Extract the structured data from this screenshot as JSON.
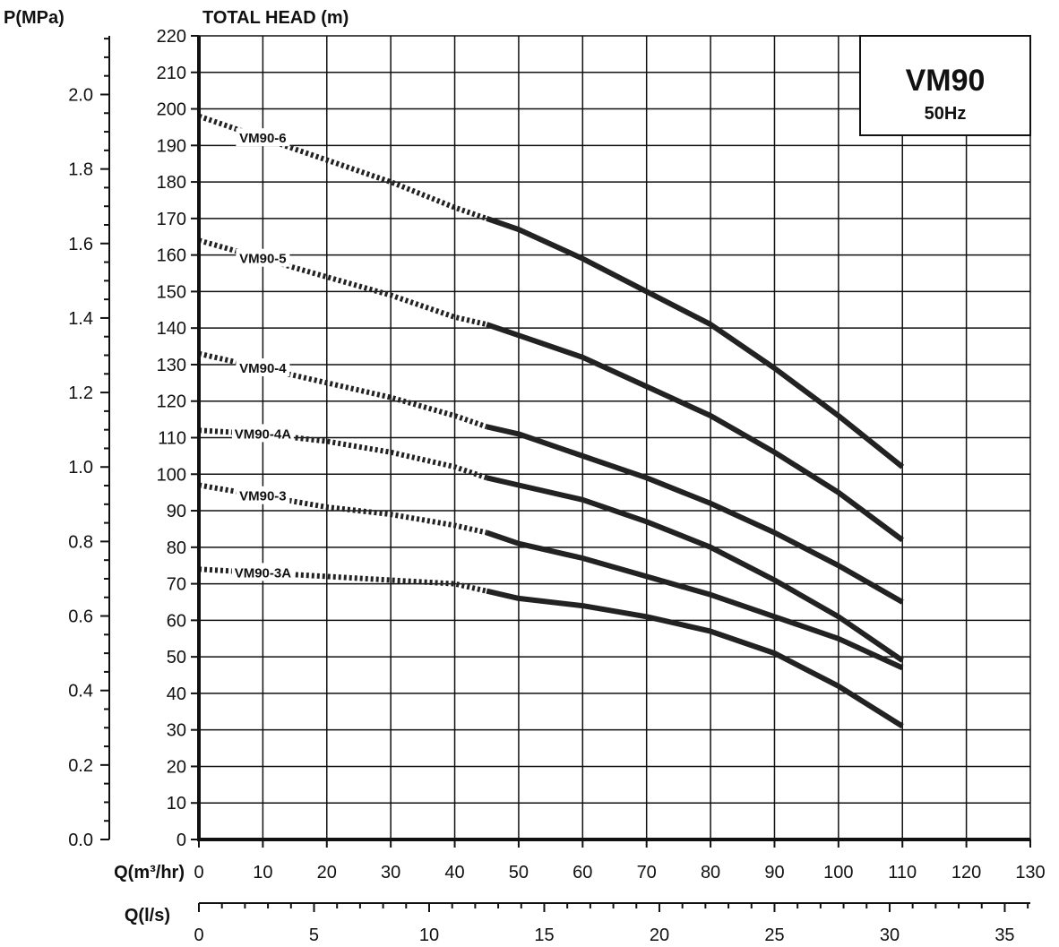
{
  "chart_data": {
    "type": "line",
    "title": "VM90",
    "subtitle": "50Hz",
    "ylabel": "TOTAL HEAD (m)",
    "ylabel_pressure": "P(MPa)",
    "xlabel": "Q(m³/hr)",
    "xlabel_secondary": "Q(l/s)",
    "xlim": [
      0,
      130
    ],
    "ylim": [
      0,
      220
    ],
    "x_ticks": [
      0,
      10,
      20,
      30,
      40,
      50,
      60,
      70,
      80,
      90,
      100,
      110,
      120,
      130
    ],
    "y_ticks": [
      0,
      10,
      20,
      30,
      40,
      50,
      60,
      70,
      80,
      90,
      100,
      110,
      120,
      130,
      140,
      150,
      160,
      170,
      180,
      190,
      200,
      210,
      220
    ],
    "pressure_ticks": [
      "0.0",
      "0.2",
      "0.4",
      "0.6",
      "0.8",
      "1.0",
      "1.2",
      "1.4",
      "1.6",
      "1.8",
      "2.0"
    ],
    "ls_ticks": [
      0,
      5,
      10,
      15,
      20,
      25,
      30,
      35
    ],
    "grid": true,
    "dotted_range_note": "dotted segment from 0 to 45 m³/hr, solid from 45 to 110 m³/hr",
    "series": [
      {
        "name": "VM90-6",
        "label_at": 10,
        "x": [
          0,
          10,
          20,
          30,
          40,
          45,
          50,
          60,
          70,
          80,
          90,
          100,
          110
        ],
        "y": [
          198,
          192,
          186,
          180,
          173,
          170,
          167,
          159,
          150,
          141,
          129,
          116,
          102
        ]
      },
      {
        "name": "VM90-5",
        "label_at": 10,
        "x": [
          0,
          10,
          20,
          30,
          40,
          45,
          50,
          60,
          70,
          80,
          90,
          100,
          110
        ],
        "y": [
          164,
          159,
          154,
          149,
          143,
          141,
          138,
          132,
          124,
          116,
          106,
          95,
          82
        ]
      },
      {
        "name": "VM90-4",
        "label_at": 10,
        "x": [
          0,
          10,
          20,
          30,
          40,
          45,
          50,
          60,
          70,
          80,
          90,
          100,
          110
        ],
        "y": [
          133,
          129,
          125,
          121,
          116,
          113,
          111,
          105,
          99,
          92,
          84,
          75,
          65
        ]
      },
      {
        "name": "VM90-4A",
        "label_at": 10,
        "x": [
          0,
          10,
          20,
          30,
          40,
          45,
          50,
          60,
          70,
          80,
          90,
          100,
          110
        ],
        "y": [
          112,
          111,
          109,
          106,
          102,
          99,
          97,
          93,
          87,
          80,
          71,
          61,
          49
        ]
      },
      {
        "name": "VM90-3",
        "label_at": 10,
        "x": [
          0,
          10,
          20,
          30,
          40,
          45,
          50,
          60,
          70,
          80,
          90,
          100,
          110
        ],
        "y": [
          97,
          94,
          91,
          89,
          86,
          84,
          81,
          77,
          72,
          67,
          61,
          55,
          47
        ]
      },
      {
        "name": "VM90-3A",
        "label_at": 10,
        "x": [
          0,
          10,
          20,
          30,
          40,
          45,
          50,
          60,
          70,
          80,
          90,
          100,
          110
        ],
        "y": [
          74,
          73,
          72,
          71,
          70,
          68,
          66,
          64,
          61,
          57,
          51,
          42,
          31
        ]
      }
    ]
  }
}
